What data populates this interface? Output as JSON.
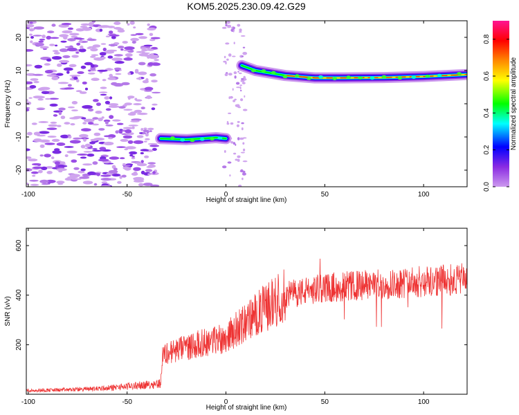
{
  "title": "KOM5.2025.230.09.42.G29",
  "chart_data": [
    {
      "type": "heatmap",
      "name": "spectrogram",
      "xlabel": "Height of straight line (km)",
      "ylabel": "Frequency (Hz)",
      "xlim": [
        -101,
        122
      ],
      "ylim": [
        -25,
        25
      ],
      "xticks": [
        -100,
        -50,
        0,
        50,
        100
      ],
      "yticks": [
        -20,
        -10,
        0,
        10,
        20
      ],
      "colorbar": {
        "label": "Normalized spectral amplitude",
        "range": [
          0,
          0.9
        ],
        "ticks": [
          0.0,
          0.2,
          0.4,
          0.6,
          0.8
        ],
        "colormap": [
          "#cc99ee",
          "#8a2be2",
          "#0000ff",
          "#00ffff",
          "#00ff00",
          "#ffff00",
          "#ff8800",
          "#ff0000",
          "#ff1493"
        ]
      },
      "ridge": [
        {
          "x": -33,
          "f": -10.5
        },
        {
          "x": -20,
          "f": -10.8
        },
        {
          "x": -5,
          "f": -10.2
        },
        {
          "x": 0,
          "f": -10.5
        },
        {
          "x": 8,
          "f": 11.5
        },
        {
          "x": 15,
          "f": 10.0
        },
        {
          "x": 30,
          "f": 8.5
        },
        {
          "x": 45,
          "f": 7.8
        },
        {
          "x": 60,
          "f": 7.8
        },
        {
          "x": 80,
          "f": 7.9
        },
        {
          "x": 100,
          "f": 8.2
        },
        {
          "x": 122,
          "f": 8.8
        }
      ]
    },
    {
      "type": "line",
      "name": "snr",
      "xlabel": "Height of straight line (km)",
      "ylabel": "SNR (v/v)",
      "xlim": [
        -101,
        122
      ],
      "ylim": [
        0,
        670
      ],
      "xticks": [
        -100,
        -50,
        0,
        50,
        100
      ],
      "yticks": [
        200,
        400,
        600
      ],
      "color": "#ee3333",
      "trend": [
        {
          "x": -101,
          "y": 15
        },
        {
          "x": -80,
          "y": 18
        },
        {
          "x": -60,
          "y": 25
        },
        {
          "x": -40,
          "y": 38
        },
        {
          "x": -33,
          "y": 45
        },
        {
          "x": -32,
          "y": 160
        },
        {
          "x": -20,
          "y": 190
        },
        {
          "x": -10,
          "y": 210
        },
        {
          "x": 0,
          "y": 230
        },
        {
          "x": 10,
          "y": 290
        },
        {
          "x": 20,
          "y": 350
        },
        {
          "x": 30,
          "y": 400
        },
        {
          "x": 50,
          "y": 430
        },
        {
          "x": 70,
          "y": 440
        },
        {
          "x": 90,
          "y": 450
        },
        {
          "x": 110,
          "y": 460
        },
        {
          "x": 122,
          "y": 465
        }
      ]
    }
  ]
}
